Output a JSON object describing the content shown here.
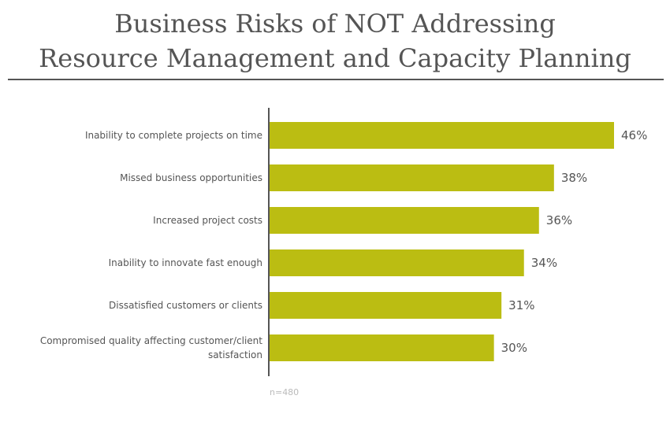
{
  "title": {
    "line1": "Business Risks of NOT Addressing",
    "line2": "Resource Management and Capacity Planning"
  },
  "note": "n=480",
  "colors": {
    "bar": "#bbbd12",
    "axis": "#555555",
    "text": "#555555"
  },
  "chart_data": {
    "type": "bar",
    "orientation": "horizontal",
    "categories": [
      [
        "Inability to complete projects on time"
      ],
      [
        "Missed business opportunities"
      ],
      [
        "Increased project costs"
      ],
      [
        "Inability to innovate fast enough"
      ],
      [
        "Dissatisfied customers or clients"
      ],
      [
        "Compromised quality affecting customer/client",
        "satisfaction"
      ]
    ],
    "values": [
      46,
      38,
      36,
      34,
      31,
      30
    ],
    "value_labels": [
      "46%",
      "38%",
      "36%",
      "34%",
      "31%",
      "30%"
    ],
    "unit": "%",
    "xlim": [
      0,
      46
    ],
    "grid": false,
    "legend": "none"
  }
}
